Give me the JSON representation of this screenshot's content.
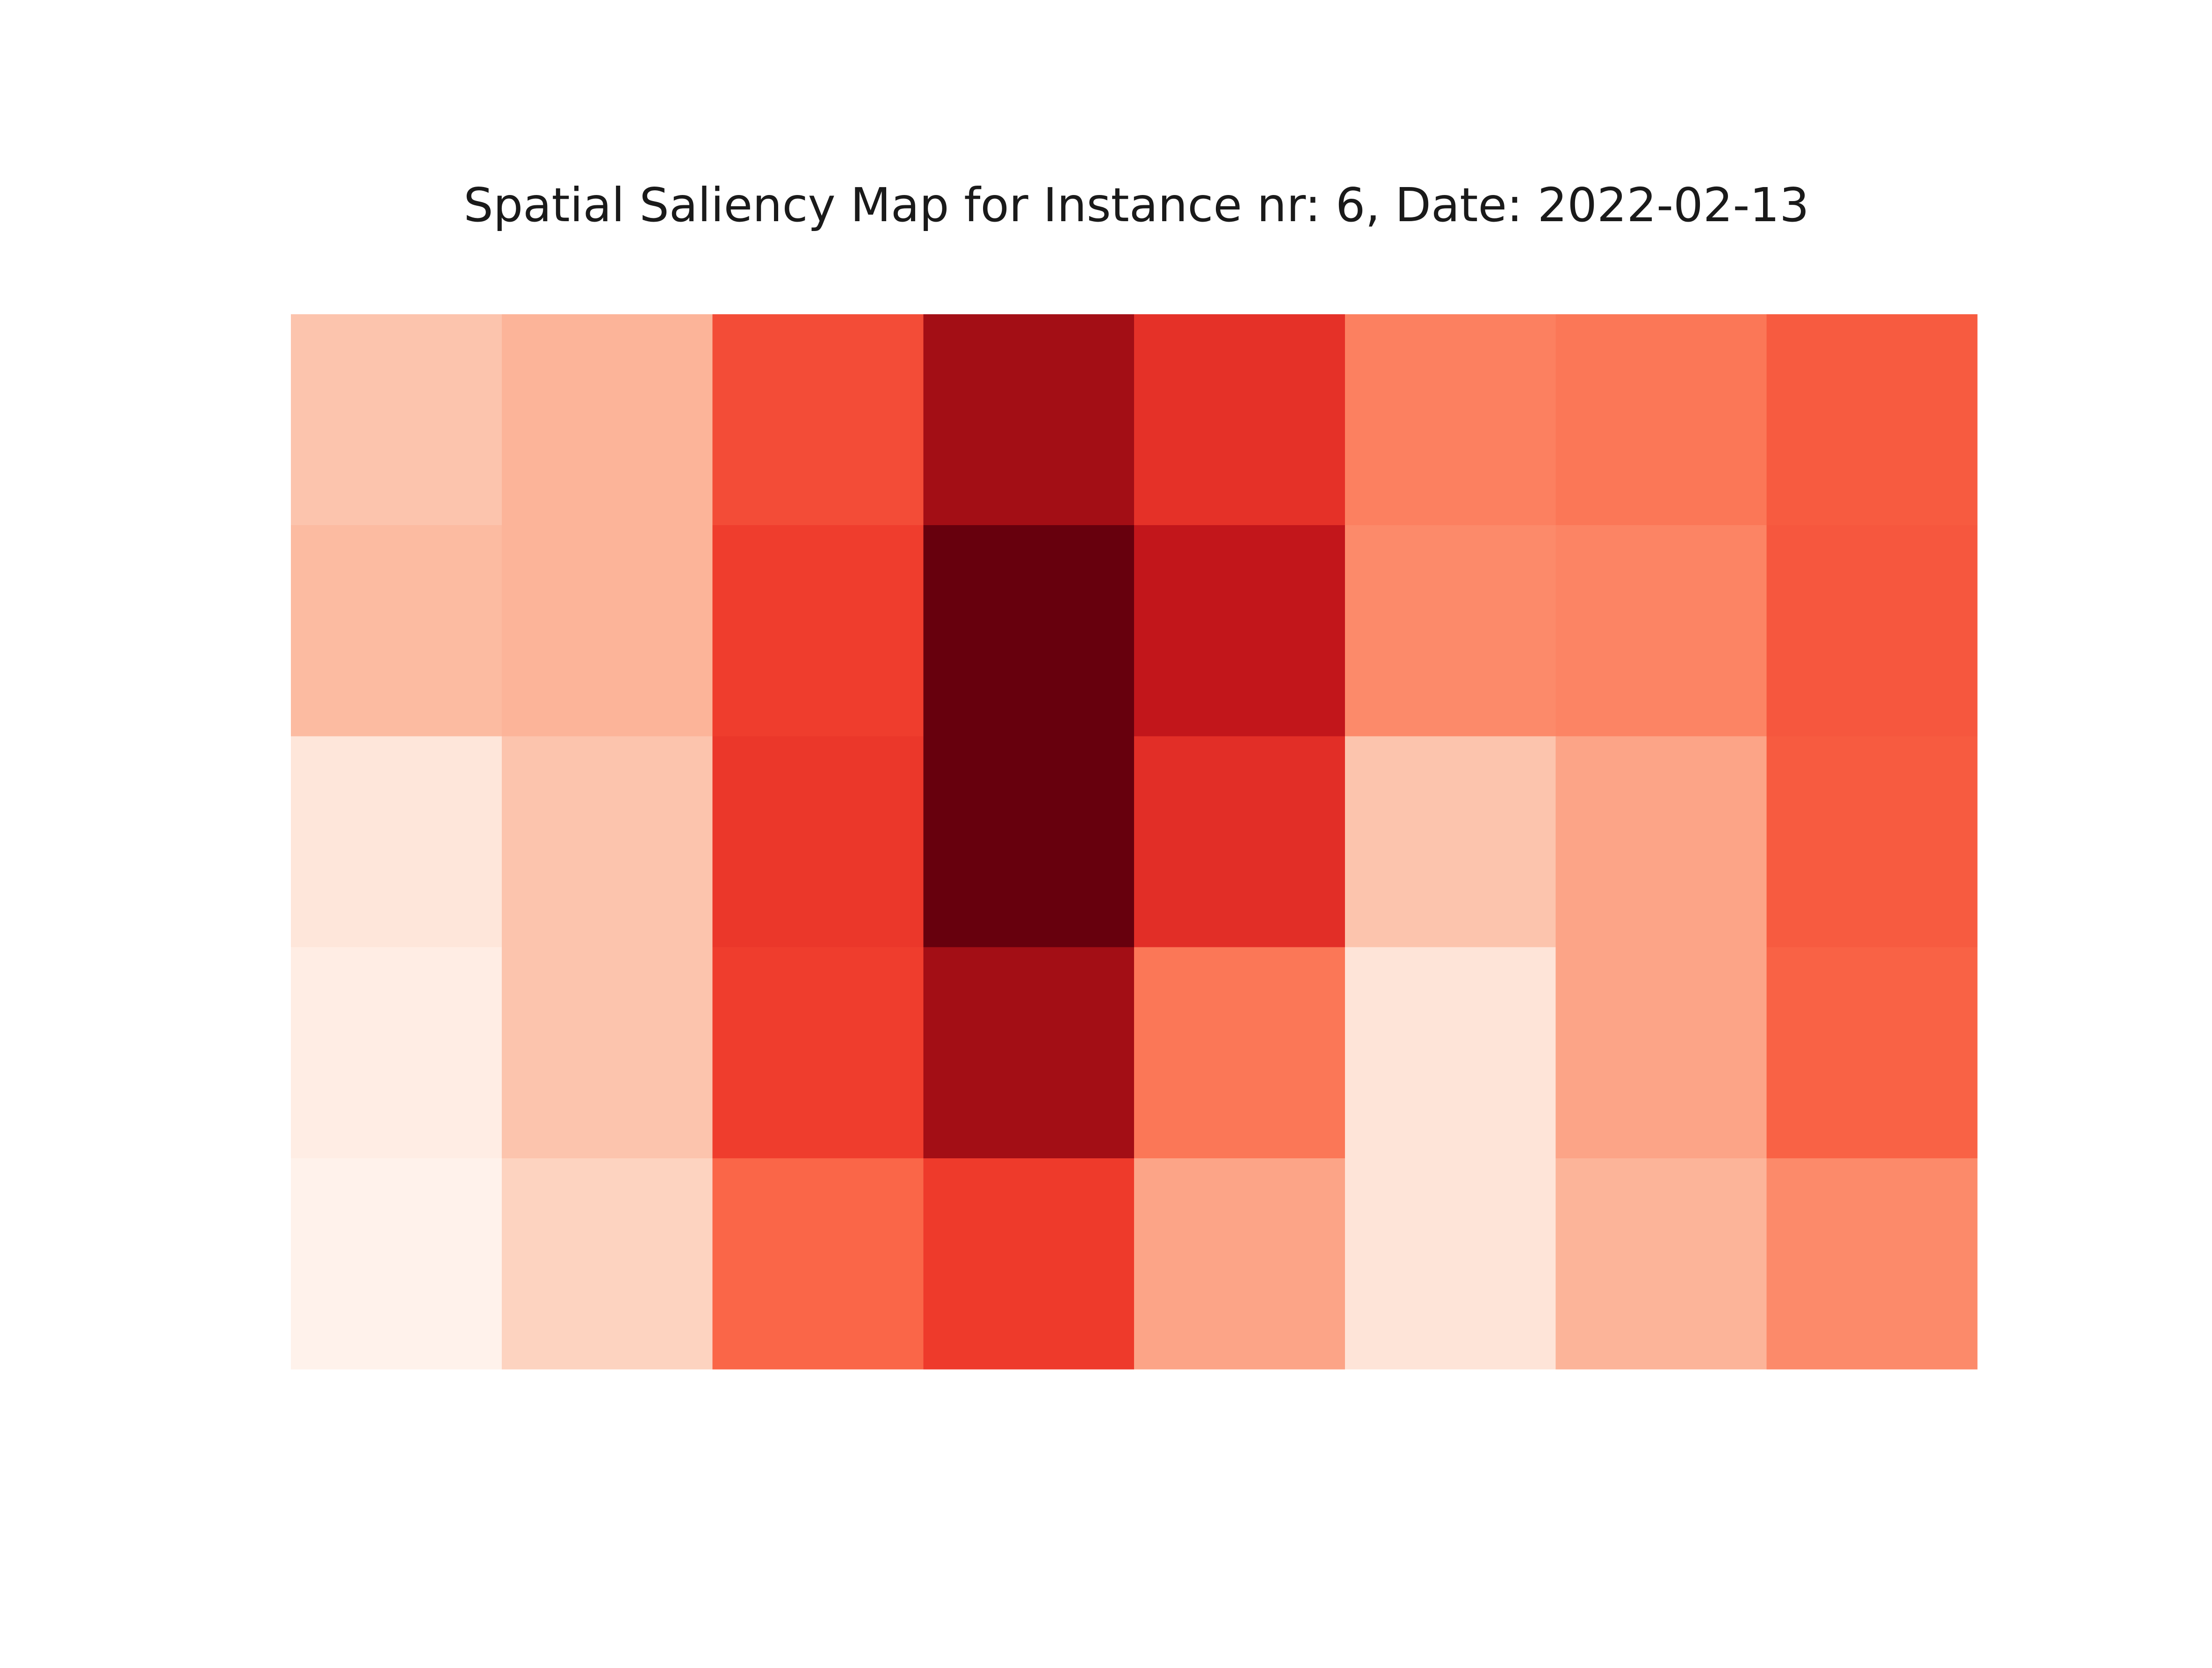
{
  "chart_data": {
    "type": "heatmap",
    "title": "Spatial Saliency Map for Instance nr: 6, Date: 2022-02-13",
    "xlabel": "",
    "ylabel": "",
    "axes_visible": false,
    "grid": false,
    "colormap": "Reds",
    "vmin": 0.0,
    "vmax": 1.0,
    "rows": 5,
    "cols": 8,
    "values": [
      [
        0.22,
        0.27,
        0.58,
        0.88,
        0.66,
        0.43,
        0.46,
        0.54
      ],
      [
        0.25,
        0.27,
        0.62,
        1.0,
        0.78,
        0.4,
        0.42,
        0.55
      ],
      [
        0.09,
        0.22,
        0.64,
        1.02,
        0.67,
        0.22,
        0.32,
        0.54
      ],
      [
        0.05,
        0.22,
        0.62,
        0.88,
        0.46,
        0.1,
        0.32,
        0.52
      ],
      [
        0.02,
        0.17,
        0.51,
        0.63,
        0.32,
        0.1,
        0.27,
        0.4
      ]
    ]
  }
}
